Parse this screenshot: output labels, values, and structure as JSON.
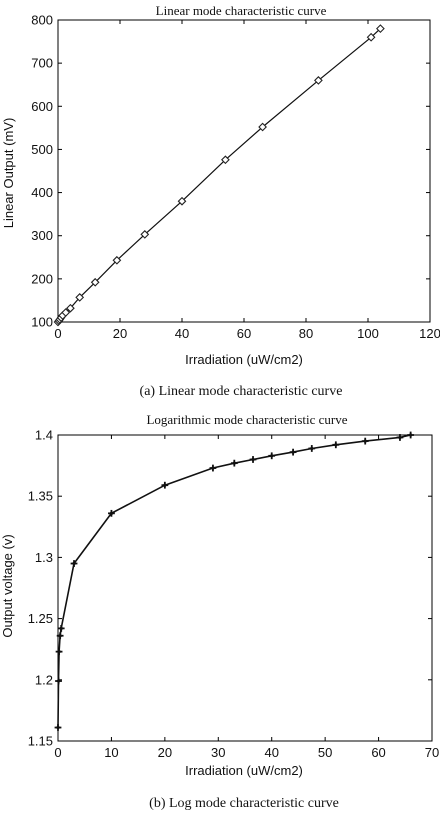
{
  "chart_data": [
    {
      "type": "line",
      "title": "Linear mode characteristic curve",
      "caption": "(a) Linear mode characteristic curve",
      "xlabel": "Irradiation (uW/cm2)",
      "ylabel": "Linear Output (mV)",
      "xlim": [
        0,
        120
      ],
      "ylim": [
        100,
        800
      ],
      "xticks": [
        "0",
        "20",
        "40",
        "60",
        "80",
        "100",
        "120"
      ],
      "yticks": [
        "100",
        "200",
        "300",
        "400",
        "500",
        "600",
        "700",
        "800"
      ],
      "grid": false,
      "marker": "diamond",
      "series": [
        {
          "x": [
            0,
            0.3,
            0.6,
            1,
            1.5,
            2.5,
            4,
            7,
            12,
            19,
            28,
            40,
            54,
            66,
            84,
            101,
            104
          ],
          "y": [
            100,
            103,
            106,
            110,
            115,
            122,
            132,
            157,
            192,
            243,
            303,
            380,
            476,
            552,
            660,
            760,
            780
          ]
        }
      ]
    },
    {
      "type": "line",
      "title": "Logarithmic mode characteristic curve",
      "caption": "(b) Log mode characteristic curve",
      "xlabel": "Irradiation (uW/cm2)",
      "ylabel": "Output voltage (v)",
      "xlim": [
        0,
        70
      ],
      "ylim": [
        1.15,
        1.4
      ],
      "xticks": [
        "0",
        "10",
        "20",
        "30",
        "40",
        "50",
        "60",
        "70"
      ],
      "yticks": [
        "1.15",
        "1.2",
        "1.25",
        "1.3",
        "1.35",
        "1.4"
      ],
      "grid": false,
      "marker": "star",
      "series": [
        {
          "x": [
            0,
            0.1,
            0.2,
            0.4,
            0.6,
            3,
            10,
            20,
            29,
            33,
            36.5,
            40,
            44,
            47.5,
            52,
            57.5,
            64,
            66
          ],
          "y": [
            1.161,
            1.199,
            1.223,
            1.236,
            1.242,
            1.295,
            1.336,
            1.359,
            1.373,
            1.377,
            1.38,
            1.383,
            1.386,
            1.389,
            1.392,
            1.395,
            1.398,
            1.4
          ]
        }
      ]
    }
  ]
}
